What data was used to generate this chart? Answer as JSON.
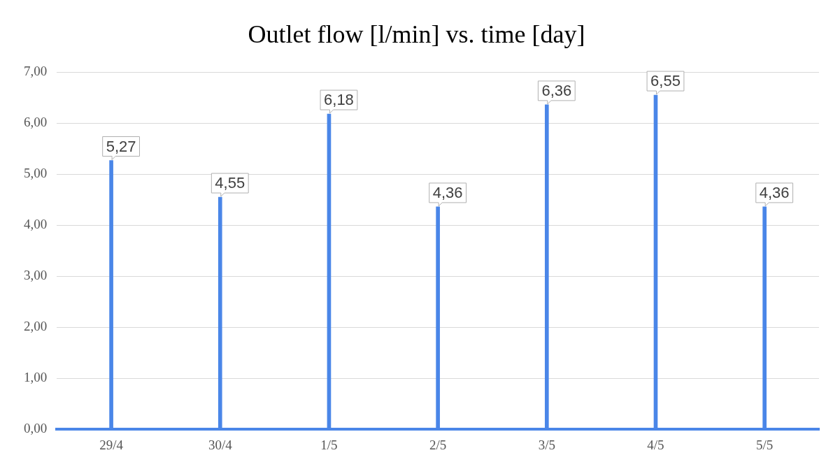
{
  "chart_data": {
    "type": "bar",
    "title": "Outlet flow [l/min] vs. time [day]",
    "categories": [
      "29/4",
      "30/4",
      "1/5",
      "2/5",
      "3/5",
      "4/5",
      "5/5"
    ],
    "values": [
      5.27,
      4.55,
      6.18,
      4.36,
      6.36,
      6.55,
      4.36
    ],
    "color": "#4a86e8",
    "ylim": [
      0,
      7
    ],
    "yticks": [
      {
        "value": 0,
        "label": "0,00"
      },
      {
        "value": 1,
        "label": "1,00"
      },
      {
        "value": 2,
        "label": "2,00"
      },
      {
        "value": 3,
        "label": "3,00"
      },
      {
        "value": 4,
        "label": "4,00"
      },
      {
        "value": 5,
        "label": "5,00"
      },
      {
        "value": 6,
        "label": "6,00"
      },
      {
        "value": 7,
        "label": "7,00"
      }
    ],
    "value_labels": [
      "5,27",
      "4,55",
      "6,18",
      "4,36",
      "6,36",
      "6,55",
      "4,36"
    ],
    "grid": "y",
    "legend": false
  }
}
